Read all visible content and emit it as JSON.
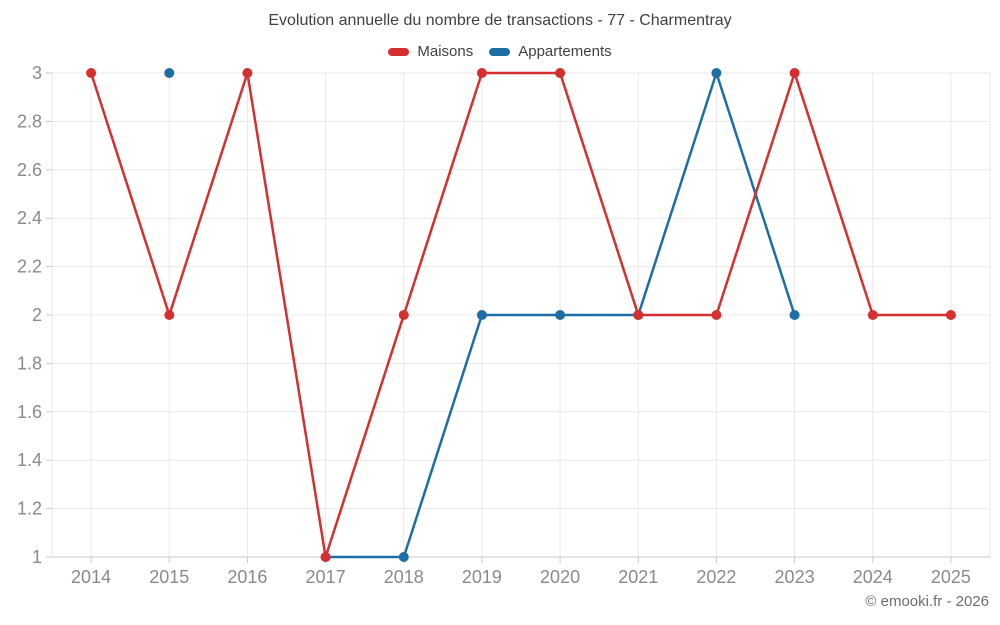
{
  "title": "Evolution annuelle du nombre de transactions - 77 - Charmentray",
  "attribution": "© emooki.fr - 2026",
  "colors": {
    "grid": "#e9e9e9",
    "axis": "#c9c9c9",
    "axis_text": "#8a8a8a",
    "title_text": "#414141",
    "legend_text": "#414141",
    "attribution_text": "#6e6e6e",
    "maisons": "#d4302f",
    "appartements": "#1c6ea4"
  },
  "chart_data": {
    "type": "line",
    "x": [
      "2014",
      "2015",
      "2016",
      "2017",
      "2018",
      "2019",
      "2020",
      "2021",
      "2022",
      "2023",
      "2024",
      "2025"
    ],
    "series": [
      {
        "name": "Maisons",
        "color": "#d4302f",
        "values": [
          3,
          2,
          3,
          1,
          2,
          3,
          3,
          2,
          2,
          3,
          2,
          2
        ]
      },
      {
        "name": "Appartements",
        "color": "#1c6ea4",
        "values": [
          null,
          3,
          null,
          1,
          1,
          2,
          2,
          2,
          3,
          2,
          null,
          null
        ]
      }
    ],
    "ylim": [
      1,
      3
    ],
    "yticks": [
      1,
      1.2,
      1.4,
      1.6,
      1.8,
      2,
      2.2,
      2.4,
      2.6,
      2.8,
      3
    ],
    "ytick_labels": [
      "1",
      "1.2",
      "1.4",
      "1.6",
      "1.8",
      "2",
      "2.2",
      "2.4",
      "2.6",
      "2.8",
      "3"
    ],
    "grid": true,
    "legend_position": "top"
  }
}
